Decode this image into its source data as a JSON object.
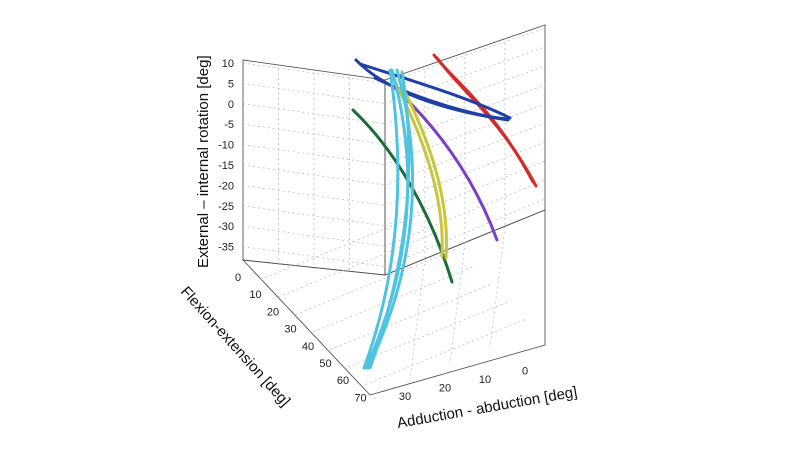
{
  "chart_data": {
    "type": "line",
    "subtype": "3d",
    "title": "",
    "axes": {
      "z": {
        "label": "External – internal rotation [deg]",
        "ticks": [
          "10",
          "5",
          "0",
          "-5",
          "-10",
          "-15",
          "-20",
          "-25",
          "-30",
          "-35"
        ],
        "range": [
          -40,
          12
        ]
      },
      "y": {
        "label": "Flexion-extension [deg]",
        "ticks": [
          "0",
          "10",
          "20",
          "30",
          "40",
          "50",
          "60",
          "70"
        ],
        "range": [
          0,
          70
        ]
      },
      "x": {
        "label": "Adduction - abduction [deg]",
        "ticks": [
          "30",
          "20",
          "10",
          "0"
        ],
        "range": [
          30,
          -5
        ]
      }
    },
    "grid": true,
    "series_colors": [
      "#d42a2a",
      "#1f3fa8",
      "#1e6b3a",
      "#7a3fc4",
      "#c9c63a",
      "#4fc3e0"
    ],
    "series": [
      {
        "color": "#d42a2a",
        "points": [
          [
            10,
            20,
            -20
          ],
          [
            8,
            15,
            -10
          ],
          [
            5,
            8,
            0
          ],
          [
            2,
            3,
            8
          ]
        ]
      },
      {
        "color": "#1f3fa8",
        "points": [
          [
            20,
            2,
            10
          ],
          [
            10,
            10,
            0
          ],
          [
            0,
            18,
            -8
          ],
          [
            25,
            5,
            8
          ],
          [
            10,
            15,
            0
          ]
        ]
      },
      {
        "color": "#1e6b3a",
        "points": [
          [
            12,
            0,
            -5
          ],
          [
            10,
            20,
            -20
          ],
          [
            8,
            40,
            -32
          ],
          [
            6,
            45,
            -35
          ]
        ]
      },
      {
        "color": "#7a3fc4",
        "points": [
          [
            15,
            5,
            0
          ],
          [
            10,
            20,
            -15
          ],
          [
            5,
            35,
            -28
          ]
        ]
      },
      {
        "color": "#c9c63a",
        "points": [
          [
            18,
            5,
            5
          ],
          [
            15,
            20,
            -10
          ],
          [
            12,
            35,
            -25
          ],
          [
            10,
            45,
            -30
          ]
        ]
      },
      {
        "color": "#4fc3e0",
        "points": [
          [
            22,
            5,
            8
          ],
          [
            20,
            20,
            -10
          ],
          [
            18,
            40,
            -30
          ],
          [
            15,
            68,
            -45
          ]
        ]
      }
    ]
  }
}
